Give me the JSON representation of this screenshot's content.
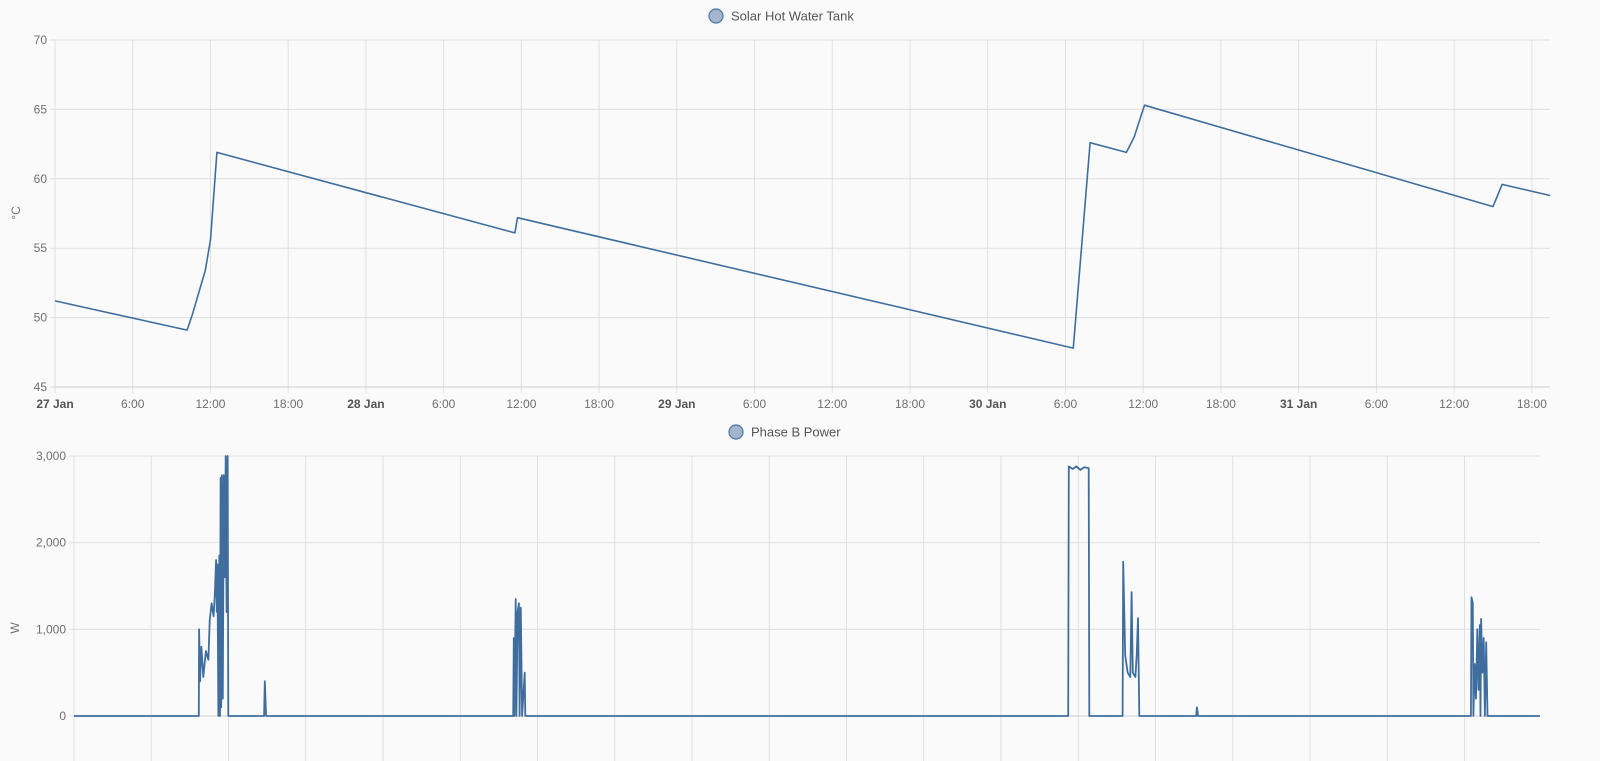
{
  "chart_data": [
    {
      "type": "line",
      "legend": "Solar Hot Water Tank",
      "legend_placement": "top-center",
      "ylabel": "°C",
      "ylim": [
        45,
        70
      ],
      "yticks": [
        "45",
        "50",
        "55",
        "60",
        "65",
        "70"
      ],
      "x_unit": "hours from 27 Jan 00:00",
      "xlim": [
        0,
        115.4
      ],
      "xticks": [
        {
          "h": 0,
          "label": "27 Jan",
          "major": true
        },
        {
          "h": 6,
          "label": "6:00"
        },
        {
          "h": 12,
          "label": "12:00"
        },
        {
          "h": 18,
          "label": "18:00"
        },
        {
          "h": 24,
          "label": "28 Jan",
          "major": true
        },
        {
          "h": 30,
          "label": "6:00"
        },
        {
          "h": 36,
          "label": "12:00"
        },
        {
          "h": 42,
          "label": "18:00"
        },
        {
          "h": 48,
          "label": "29 Jan",
          "major": true
        },
        {
          "h": 54,
          "label": "6:00"
        },
        {
          "h": 60,
          "label": "12:00"
        },
        {
          "h": 66,
          "label": "18:00"
        },
        {
          "h": 72,
          "label": "30 Jan",
          "major": true
        },
        {
          "h": 78,
          "label": "6:00"
        },
        {
          "h": 84,
          "label": "12:00"
        },
        {
          "h": 90,
          "label": "18:00"
        },
        {
          "h": 96,
          "label": "31 Jan",
          "major": true
        },
        {
          "h": 102,
          "label": "6:00"
        },
        {
          "h": 108,
          "label": "12:00"
        },
        {
          "h": 114,
          "label": "18:00"
        }
      ],
      "grid": true,
      "color": "#3f6e9e",
      "points": [
        [
          0,
          51.2
        ],
        [
          10.2,
          49.1
        ],
        [
          10.6,
          50.2
        ],
        [
          11.6,
          53.4
        ],
        [
          12.0,
          55.6
        ],
        [
          12.5,
          61.9
        ],
        [
          35.5,
          56.1
        ],
        [
          35.7,
          57.2
        ],
        [
          78.6,
          47.8
        ],
        [
          79.9,
          62.6
        ],
        [
          82.7,
          61.9
        ],
        [
          83.3,
          63.0
        ],
        [
          84.1,
          65.3
        ],
        [
          111.0,
          58.0
        ],
        [
          111.7,
          59.6
        ],
        [
          115.4,
          58.8
        ]
      ]
    },
    {
      "type": "line",
      "legend": "Phase B Power",
      "legend_placement": "top-center",
      "ylabel": "W",
      "ylim": [
        0,
        3000
      ],
      "yticks": [
        "0",
        "1,000",
        "2,000",
        "3,000"
      ],
      "x_unit": "hours from 27 Jan 00:00",
      "xlim": [
        0,
        114.5
      ],
      "grid": true,
      "color": "#3f6e9e",
      "points": [
        [
          0,
          0
        ],
        [
          9.75,
          0
        ],
        [
          9.77,
          1000
        ],
        [
          9.85,
          400
        ],
        [
          9.95,
          800
        ],
        [
          10.1,
          450
        ],
        [
          10.3,
          750
        ],
        [
          10.5,
          650
        ],
        [
          10.6,
          1100
        ],
        [
          10.75,
          1300
        ],
        [
          10.9,
          1150
        ],
        [
          11.0,
          1400
        ],
        [
          11.1,
          1800
        ],
        [
          11.15,
          1200
        ],
        [
          11.2,
          1750
        ],
        [
          11.28,
          0
        ],
        [
          11.35,
          1850
        ],
        [
          11.4,
          0
        ],
        [
          11.45,
          2750
        ],
        [
          11.5,
          100
        ],
        [
          11.55,
          2780
        ],
        [
          11.62,
          200
        ],
        [
          11.7,
          2780
        ],
        [
          11.78,
          1600
        ],
        [
          11.85,
          3000
        ],
        [
          11.92,
          1200
        ],
        [
          12.0,
          3000
        ],
        [
          12.05,
          0
        ],
        [
          14.85,
          0
        ],
        [
          14.9,
          400
        ],
        [
          15.0,
          0
        ],
        [
          34.3,
          0
        ],
        [
          34.35,
          900
        ],
        [
          34.4,
          0
        ],
        [
          34.5,
          1350
        ],
        [
          34.55,
          0
        ],
        [
          34.65,
          1200
        ],
        [
          34.75,
          1300
        ],
        [
          34.8,
          0
        ],
        [
          34.9,
          1250
        ],
        [
          35.0,
          0
        ],
        [
          35.2,
          500
        ],
        [
          35.25,
          0
        ],
        [
          77.65,
          0
        ],
        [
          77.7,
          2880
        ],
        [
          78.0,
          2850
        ],
        [
          78.3,
          2880
        ],
        [
          78.6,
          2840
        ],
        [
          78.9,
          2870
        ],
        [
          79.25,
          2860
        ],
        [
          79.3,
          0
        ],
        [
          81.9,
          0
        ],
        [
          81.95,
          1780
        ],
        [
          82.1,
          700
        ],
        [
          82.3,
          500
        ],
        [
          82.5,
          450
        ],
        [
          82.6,
          1430
        ],
        [
          82.7,
          500
        ],
        [
          82.9,
          450
        ],
        [
          83.0,
          700
        ],
        [
          83.1,
          1130
        ],
        [
          83.2,
          0
        ],
        [
          87.65,
          0
        ],
        [
          87.7,
          100
        ],
        [
          87.8,
          0
        ],
        [
          109.1,
          0
        ],
        [
          109.15,
          1370
        ],
        [
          109.25,
          1300
        ],
        [
          109.3,
          0
        ],
        [
          109.4,
          600
        ],
        [
          109.5,
          200
        ],
        [
          109.6,
          1000
        ],
        [
          109.7,
          300
        ],
        [
          109.8,
          1050
        ],
        [
          109.85,
          0
        ],
        [
          109.9,
          1120
        ],
        [
          110.0,
          500
        ],
        [
          110.1,
          900
        ],
        [
          110.2,
          0
        ],
        [
          110.3,
          850
        ],
        [
          110.4,
          0
        ],
        [
          114.5,
          0
        ]
      ]
    }
  ]
}
